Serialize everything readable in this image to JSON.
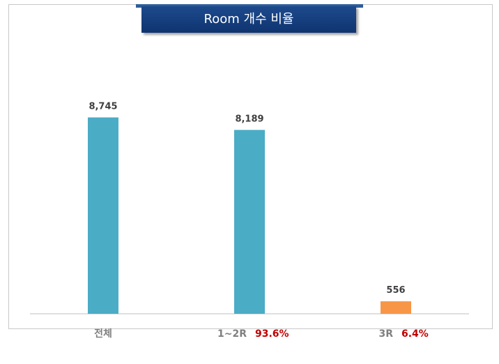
{
  "chart_data": {
    "type": "bar",
    "title": "Room 개수 비율",
    "categories": [
      "전체",
      "1~2R",
      "3R"
    ],
    "values": [
      8745,
      8189,
      556
    ],
    "value_labels": [
      "8,745",
      "8,189",
      "556"
    ],
    "shares": [
      "",
      "93.6%",
      "6.4%"
    ],
    "bar_colors": [
      "#4bacc6",
      "#4bacc6",
      "#f79646"
    ],
    "share_color": "#c00000",
    "ylim": [
      0,
      10000
    ],
    "grid": false,
    "legend": "none"
  }
}
